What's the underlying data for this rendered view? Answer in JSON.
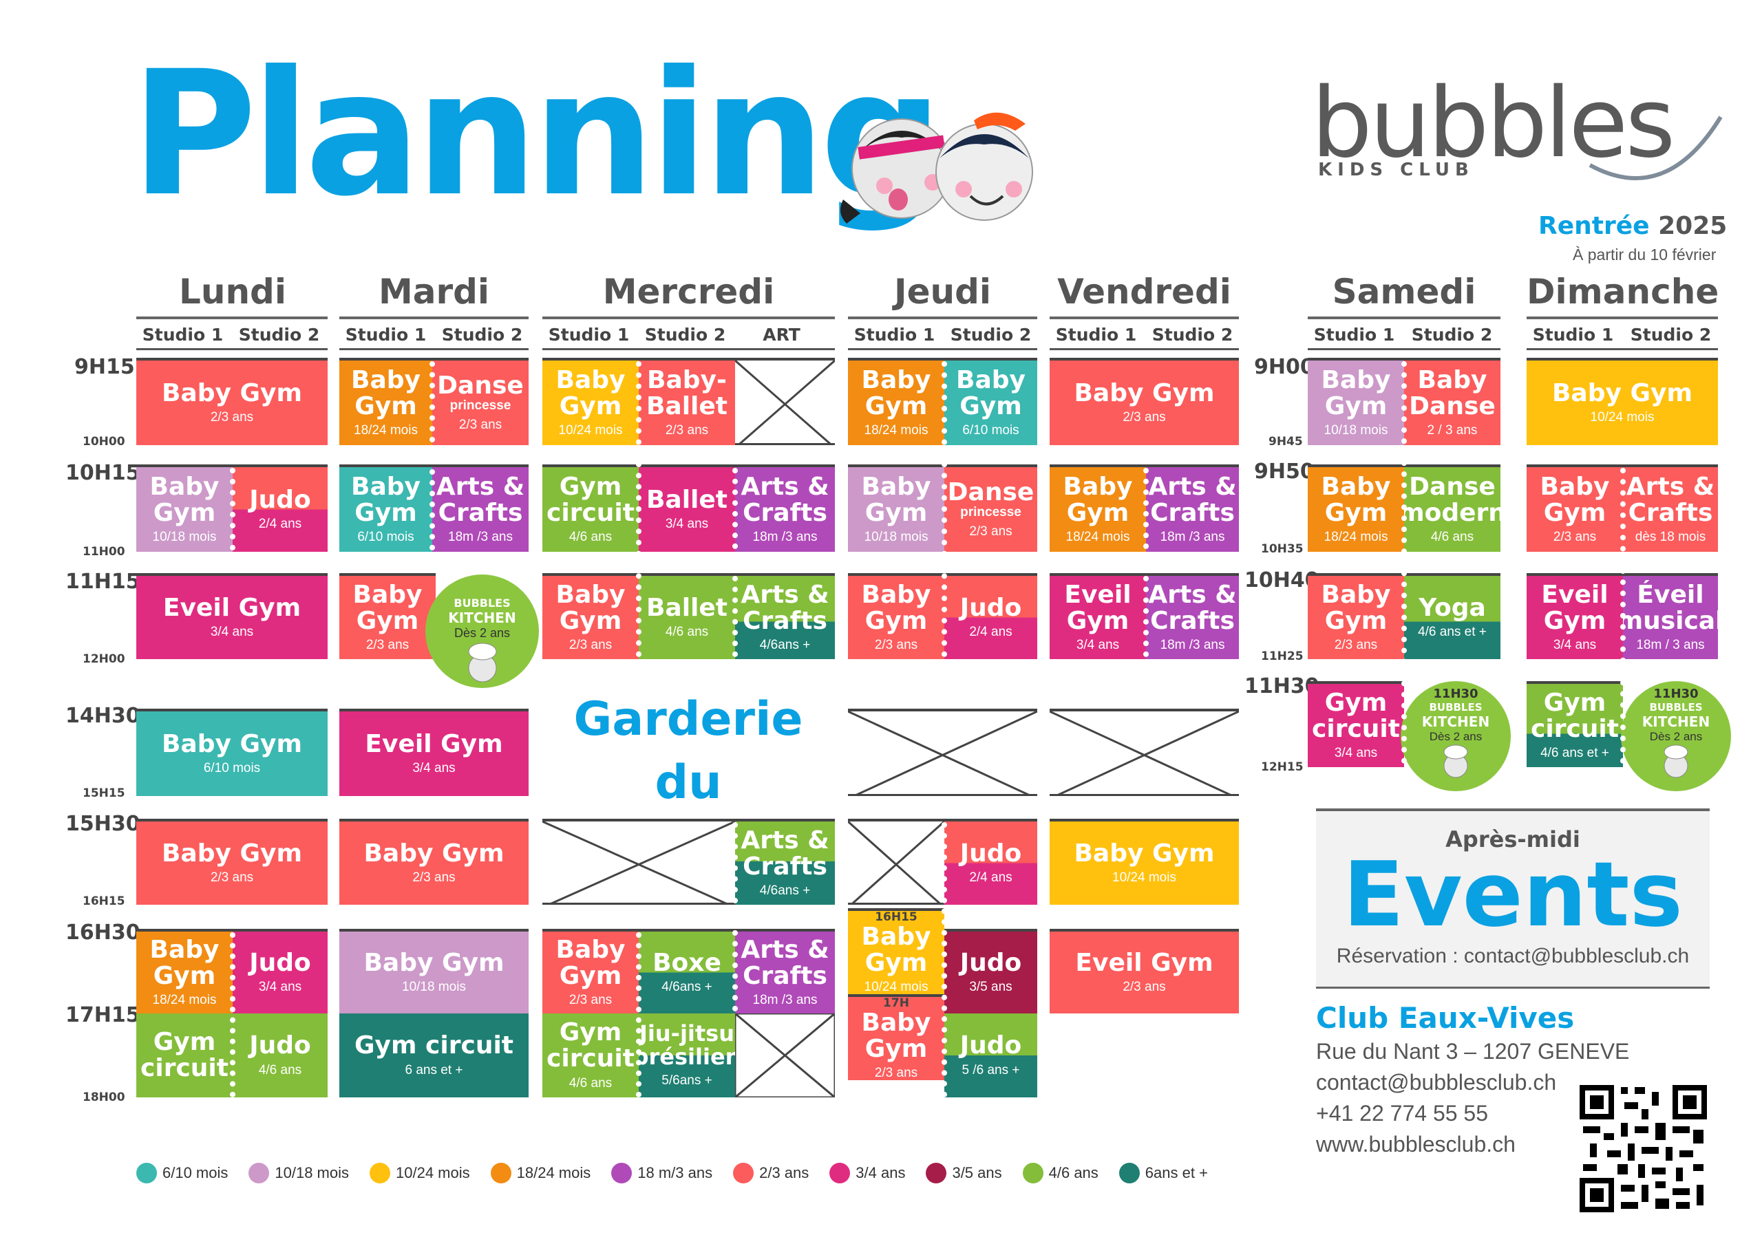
{
  "header": {
    "title": "Planning",
    "logo_text": "bubbles",
    "logo_sub": "KIDS CLUB",
    "rentree": "Rentrée",
    "year": "2025",
    "start": "À partir du 10 février"
  },
  "days": {
    "mon": "Lundi",
    "tue": "Mardi",
    "wed": "Mercredi",
    "thu": "Jeudi",
    "fri": "Vendredi",
    "sat": "Samedi",
    "sun": "Dimanche"
  },
  "studios": {
    "s1": "Studio 1",
    "s2": "Studio 2",
    "art": "ART"
  },
  "times": {
    "t1": "9H15",
    "t1e": "10H00",
    "t2": "10H15",
    "t2e": "11H00",
    "t3": "11H15",
    "t3e": "12H00",
    "t4": "14H30",
    "t4e": "15H15",
    "t5": "15H30",
    "t5e": "16H15",
    "t6": "16H30",
    "t7": "17H15",
    "t7e": "18H00",
    "w1": "9H00",
    "w1e": "9H45",
    "w2": "9H50",
    "w2e": "10H35",
    "w3": "10H40",
    "w3e": "11H25",
    "w4": "11H30",
    "w4e": "12H15",
    "j1615": "16H15",
    "j17": "17H"
  },
  "classes": {
    "baby_gym": "Baby Gym",
    "baby": "Baby",
    "gym": "Gym",
    "danse": "Danse",
    "princesse": "princesse",
    "babyballet1": "Baby-",
    "babyballet2": "Ballet",
    "arts": "Arts &",
    "crafts": "Crafts",
    "ballet": "Ballet",
    "gym_c1": "Gym",
    "gym_c2": "circuit",
    "gym_circuit": "Gym circuit",
    "judo": "Judo",
    "eveil_gym": "Eveil Gym",
    "eveil": "Eveil",
    "eveil_acc": "Éveil",
    "musical": "musical",
    "yoga": "Yoga",
    "danse2": "Danse",
    "dmodern": "modern",
    "bdanse": "Danse",
    "boxe": "Boxe",
    "jj1": "Jiu-jitsu",
    "jj2": "brésilien"
  },
  "ages": {
    "a23": "2/3 ans",
    "a1824": "18/24 mois",
    "a1024": "10/24 mois",
    "a610": "6/10 mois",
    "a1018": "10/18 mois",
    "a24": "2/4 ans",
    "a46": "4/6 ans",
    "a34": "3/4 ans",
    "a18m3": "18m /3 ans",
    "a46p": "4/6ans +",
    "a6p": "6 ans et +",
    "a56p": "5/6ans +",
    "a35": "3/5 ans",
    "a56plus": "5 /6 ans +",
    "a46etp": "4/6 ans et +",
    "a18m3b": "18m / 3 ans",
    "ades18": "dès 18 mois",
    "a2 3": "2 / 3 ans"
  },
  "kitchen": {
    "title": "BUBBLES",
    "sub": "KITCHEN",
    "age": "Dès 2 ans",
    "time": "11H30"
  },
  "garderie": {
    "l1": "Garderie",
    "l2": "du Mercredi"
  },
  "events": {
    "pre": "Après-midi",
    "title": "Events",
    "resa": "Réservation : contact@bubblesclub.ch"
  },
  "club": {
    "name": "Club Eaux-Vives",
    "address": "Rue du  Nant 3 – 1207 GENEVE",
    "email": "contact@bubblesclub.ch",
    "phone": "+41 22 774 55 55",
    "web": "www.bubblesclub.ch"
  },
  "legend": [
    {
      "label": "6/10 mois",
      "color": "#3bb8b0"
    },
    {
      "label": "10/18 mois",
      "color": "#cc99c9"
    },
    {
      "label": "10/24 mois",
      "color": "#ffc10e"
    },
    {
      "label": "18/24 mois",
      "color": "#f28c13"
    },
    {
      "label": "18 m/3 ans",
      "color": "#b04ab8"
    },
    {
      "label": "2/3 ans",
      "color": "#fc5c5c"
    },
    {
      "label": "3/4 ans",
      "color": "#e02c80"
    },
    {
      "label": "3/5 ans",
      "color": "#a61d4a"
    },
    {
      "label": "4/6 ans",
      "color": "#84bd3a"
    },
    {
      "label": "6ans et +",
      "color": "#1f7f72"
    }
  ]
}
